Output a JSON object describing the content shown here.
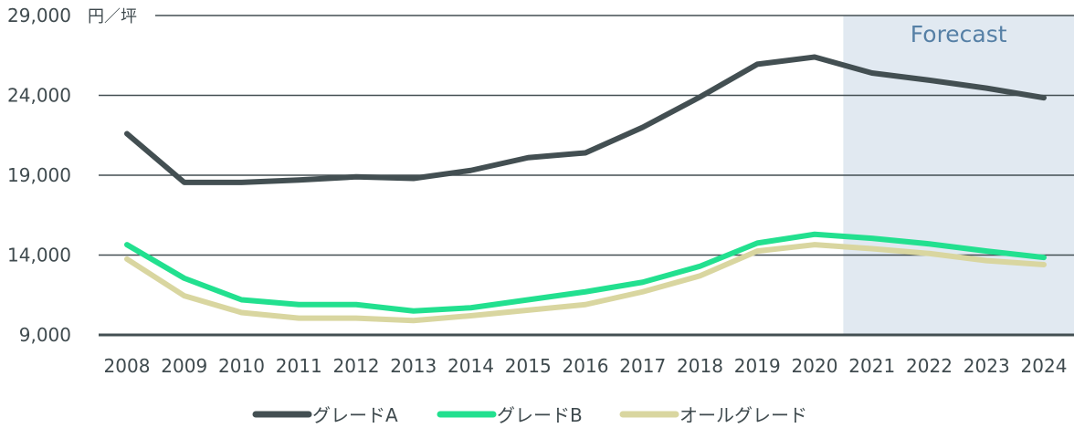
{
  "chart_data": {
    "type": "line",
    "title": "",
    "unit_label": "円／坪",
    "xlabel": "",
    "ylabel": "円／坪",
    "ylim": [
      9000,
      29000
    ],
    "yticks": [
      9000,
      14000,
      19000,
      24000,
      29000
    ],
    "ytick_labels": [
      "9,000",
      "14,000",
      "19,000",
      "24,000",
      "29,000"
    ],
    "grid": true,
    "legend_position": "bottom",
    "forecast_label": "Forecast",
    "forecast_from": 2021,
    "x": [
      "2008",
      "2009",
      "2010",
      "2011",
      "2012",
      "2013",
      "2014",
      "2015",
      "2016",
      "2017",
      "2018",
      "2019",
      "2020",
      "2021",
      "2022",
      "2023",
      "2024"
    ],
    "series": [
      {
        "name": "グレードA",
        "color": "#434f52",
        "values": [
          21600,
          18550,
          18550,
          18700,
          18900,
          18800,
          19300,
          20100,
          20400,
          22000,
          23900,
          25950,
          26400,
          25400,
          24950,
          24450,
          23850
        ]
      },
      {
        "name": "グレードB",
        "color": "#22e08f",
        "values": [
          14650,
          12550,
          11200,
          10900,
          10900,
          10500,
          10700,
          11200,
          11700,
          12300,
          13300,
          14750,
          15300,
          15050,
          14700,
          14250,
          13850
        ]
      },
      {
        "name": "オールグレード",
        "color": "#d9d6a0",
        "values": [
          13750,
          11450,
          10400,
          10050,
          10050,
          9900,
          10200,
          10550,
          10900,
          11700,
          12700,
          14250,
          14650,
          14400,
          14100,
          13650,
          13400
        ]
      }
    ]
  }
}
